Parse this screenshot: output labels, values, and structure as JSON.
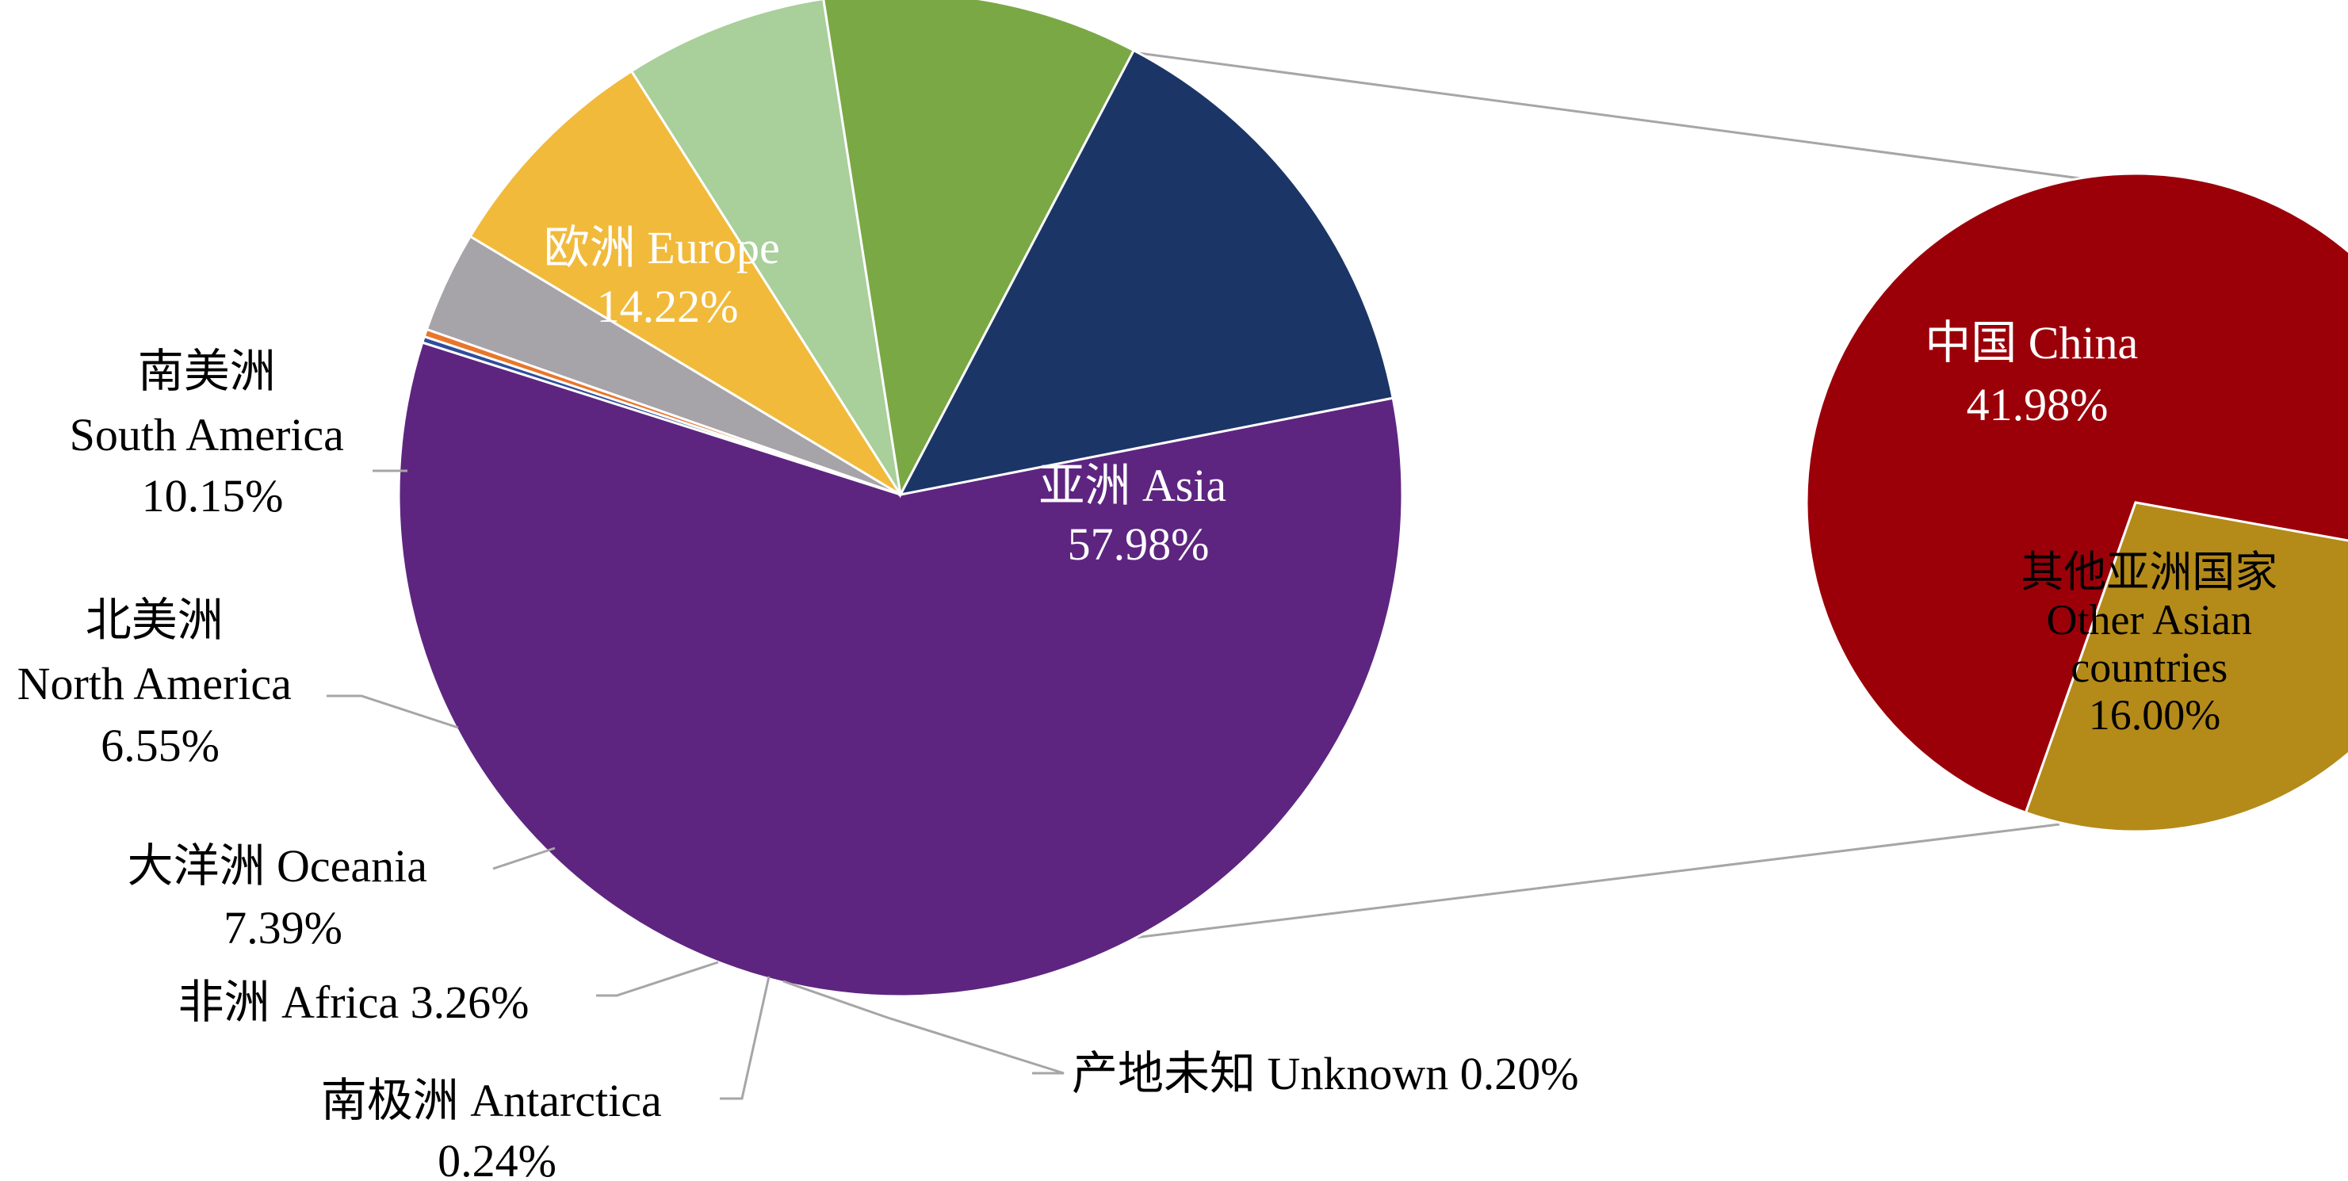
{
  "chart_data": [
    {
      "type": "pie",
      "name": "",
      "slices": [
        {
          "zh": "亚洲",
          "en": "Asia",
          "value": 57.98,
          "pct": "57.98%",
          "color": "#5e2580",
          "label_color": "#ffffff"
        },
        {
          "zh": "产地未知",
          "en": "Unknown",
          "value": 0.2,
          "pct": "0.20%",
          "color": "#2e4d9c",
          "label_color": "#000000"
        },
        {
          "zh": "南极洲",
          "en": "Antarctica",
          "value": 0.24,
          "pct": "0.24%",
          "color": "#e8762b",
          "label_color": "#000000"
        },
        {
          "zh": "非洲",
          "en": "Africa",
          "value": 3.26,
          "pct": "3.26%",
          "color": "#a6a4a8",
          "label_color": "#000000"
        },
        {
          "zh": "大洋洲",
          "en": "Oceania",
          "value": 7.39,
          "pct": "7.39%",
          "color": "#f1ba3b",
          "label_color": "#000000"
        },
        {
          "zh": "北美洲",
          "en": "North America",
          "value": 6.55,
          "pct": "6.55%",
          "color": "#a9cf9a",
          "label_color": "#000000"
        },
        {
          "zh": "南美洲",
          "en": "South America",
          "value": 10.15,
          "pct": "10.15%",
          "color": "#7aa845",
          "label_color": "#000000"
        },
        {
          "zh": "欧洲",
          "en": "Europe",
          "value": 14.22,
          "pct": "14.22%",
          "color": "#1b3566",
          "label_color": "#ffffff"
        }
      ]
    },
    {
      "type": "pie",
      "name": "breakdown-of-asia",
      "slices": [
        {
          "zh": "中国",
          "en": "China",
          "value": 41.98,
          "pct": "41.98%",
          "color": "#9b0009",
          "label_color": "#ffffff"
        },
        {
          "zh": "其他亚洲国家",
          "en": "Other Asian countries",
          "en_lines": [
            "Other Asian",
            "countries"
          ],
          "value": 16.0,
          "pct": "16.00%",
          "color": "#b48a19",
          "label_color": "#000000"
        }
      ]
    }
  ],
  "labels": {
    "asia": {
      "line1": "亚洲 Asia",
      "line2": "57.98%"
    },
    "europe": {
      "line1": "欧洲 Europe",
      "line2": "14.22%"
    },
    "south_america": {
      "line1": "南美洲",
      "line2": "South America",
      "line3": "10.15%"
    },
    "north_america": {
      "line1": "北美洲",
      "line2": "North America",
      "line3": "6.55%"
    },
    "oceania": {
      "line1": "大洋洲 Oceania",
      "line2": "7.39%"
    },
    "africa": {
      "line1": "非洲 Africa 3.26%"
    },
    "antarctica": {
      "line1": "南极洲 Antarctica",
      "line2": "0.24%"
    },
    "unknown": {
      "line1": "产地未知 Unknown 0.20%"
    },
    "china": {
      "line1": "中国 China",
      "line2": "41.98%"
    },
    "other_asia": {
      "line1": "其他亚洲国家",
      "line2": "Other Asian",
      "line3": "countries",
      "line4": "16.00%"
    }
  },
  "colors": {
    "connector": "#a6a6a6",
    "slice_border": "#ffffff"
  }
}
